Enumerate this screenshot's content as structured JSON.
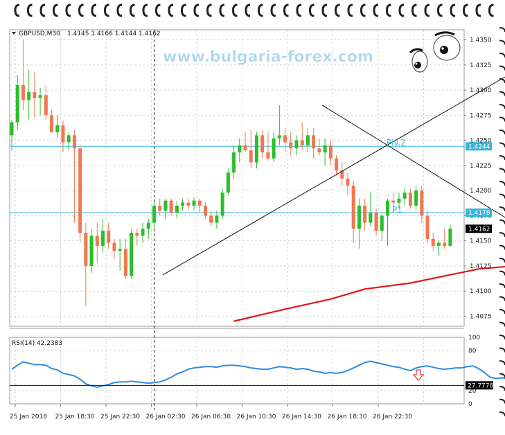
{
  "watermark": "www.bulgaria-forex.com",
  "colors": {
    "bull": "#2bbf2b",
    "bear": "#f07850",
    "pivot": "#39b6d9",
    "ma": "#e01818",
    "rsi": "#2e8be0",
    "grid": "#d6d6d6",
    "frame": "#9a9a9a",
    "arrow": "#e03030"
  },
  "chart_data": [
    {
      "type": "candlestick",
      "title": "GBPUSD,M30",
      "ohlc_header": "1.4145 1.4166 1.4144 1.4162",
      "ylim": [
        1.4065,
        1.436
      ],
      "y_ticks": [
        "1.4350",
        "1.4325",
        "1.4300",
        "1.4275",
        "1.4250",
        "1.4225",
        "1.4200",
        "1.4175",
        "1.4150",
        "1.4125",
        "1.4100",
        "1.4075"
      ],
      "x_labels": [
        "25 Jan 2018",
        "25 Jan 18:30",
        "25 Jan 22:30",
        "26 Jan 02:30",
        "26 Jan 06:30",
        "26 Jan 10:30",
        "26 Jan 14:30",
        "26 Jan 18:30",
        "26 Jan 22:30"
      ],
      "candles": [
        [
          1.4255,
          1.427,
          1.424,
          1.4268
        ],
        [
          1.4268,
          1.4315,
          1.426,
          1.4305
        ],
        [
          1.4305,
          1.435,
          1.428,
          1.429
        ],
        [
          1.429,
          1.432,
          1.427,
          1.4298
        ],
        [
          1.4298,
          1.4318,
          1.4272,
          1.4292
        ],
        [
          1.4292,
          1.4302,
          1.4275,
          1.4295
        ],
        [
          1.4295,
          1.4305,
          1.427,
          1.4275
        ],
        [
          1.4275,
          1.428,
          1.426,
          1.4258
        ],
        [
          1.4258,
          1.4275,
          1.4252,
          1.4265
        ],
        [
          1.4265,
          1.427,
          1.4238,
          1.4248
        ],
        [
          1.4248,
          1.4258,
          1.424,
          1.4255
        ],
        [
          1.4255,
          1.426,
          1.4168,
          1.4242
        ],
        [
          1.4242,
          1.4245,
          1.4148,
          1.4158
        ],
        [
          1.4158,
          1.4168,
          1.4085,
          1.4125
        ],
        [
          1.4125,
          1.4162,
          1.4118,
          1.4155
        ],
        [
          1.4155,
          1.4168,
          1.4128,
          1.4145
        ],
        [
          1.4145,
          1.4172,
          1.4138,
          1.416
        ],
        [
          1.416,
          1.4168,
          1.4142,
          1.4148
        ],
        [
          1.4148,
          1.4152,
          1.4132,
          1.414
        ],
        [
          1.414,
          1.4152,
          1.412,
          1.4142
        ],
        [
          1.4142,
          1.4152,
          1.4112,
          1.4115
        ],
        [
          1.4115,
          1.4162,
          1.4112,
          1.4158
        ],
        [
          1.4158,
          1.4162,
          1.4145,
          1.4155
        ],
        [
          1.4155,
          1.4168,
          1.4148,
          1.4162
        ],
        [
          1.4162,
          1.4172,
          1.4152,
          1.4168
        ],
        [
          1.4168,
          1.4188,
          1.4162,
          1.4185
        ],
        [
          1.4185,
          1.4192,
          1.4175,
          1.418
        ],
        [
          1.418,
          1.4192,
          1.4172,
          1.419
        ],
        [
          1.419,
          1.4192,
          1.4175,
          1.4178
        ],
        [
          1.4178,
          1.419,
          1.4172,
          1.4185
        ],
        [
          1.4185,
          1.4192,
          1.418,
          1.4188
        ],
        [
          1.4188,
          1.4192,
          1.418,
          1.4185
        ],
        [
          1.4185,
          1.4193,
          1.418,
          1.419
        ],
        [
          1.419,
          1.4192,
          1.4178,
          1.4185
        ],
        [
          1.4185,
          1.4188,
          1.4172,
          1.4175
        ],
        [
          1.4175,
          1.418,
          1.4165,
          1.4168
        ],
        [
          1.4168,
          1.418,
          1.4162,
          1.4175
        ],
        [
          1.4175,
          1.4202,
          1.4172,
          1.4198
        ],
        [
          1.4198,
          1.4222,
          1.4195,
          1.4218
        ],
        [
          1.4218,
          1.4245,
          1.4212,
          1.4238
        ],
        [
          1.4238,
          1.4252,
          1.4228,
          1.4245
        ],
        [
          1.4245,
          1.4258,
          1.4238,
          1.424
        ],
        [
          1.424,
          1.426,
          1.4222,
          1.4228
        ],
        [
          1.4228,
          1.4258,
          1.4222,
          1.4255
        ],
        [
          1.4255,
          1.426,
          1.4232,
          1.4238
        ],
        [
          1.4238,
          1.4258,
          1.423,
          1.4232
        ],
        [
          1.4232,
          1.4258,
          1.4228,
          1.4252
        ],
        [
          1.4252,
          1.4285,
          1.4245,
          1.4255
        ],
        [
          1.4255,
          1.4262,
          1.4238,
          1.4248
        ],
        [
          1.4248,
          1.4258,
          1.4235,
          1.4242
        ],
        [
          1.4242,
          1.4255,
          1.4235,
          1.425
        ],
        [
          1.425,
          1.4268,
          1.424,
          1.4245
        ],
        [
          1.4245,
          1.4262,
          1.4238,
          1.4255
        ],
        [
          1.4255,
          1.4262,
          1.4232,
          1.4242
        ],
        [
          1.4242,
          1.4252,
          1.4235,
          1.4238
        ],
        [
          1.4238,
          1.4252,
          1.4225,
          1.4245
        ],
        [
          1.4245,
          1.425,
          1.4225,
          1.4232
        ],
        [
          1.4232,
          1.4235,
          1.4215,
          1.422
        ],
        [
          1.422,
          1.4228,
          1.4205,
          1.4212
        ],
        [
          1.4212,
          1.4218,
          1.4195,
          1.4205
        ],
        [
          1.4205,
          1.421,
          1.4148,
          1.4162
        ],
        [
          1.4162,
          1.4192,
          1.4142,
          1.4185
        ],
        [
          1.4185,
          1.4192,
          1.416,
          1.4168
        ],
        [
          1.4168,
          1.4198,
          1.4165,
          1.4178
        ],
        [
          1.4178,
          1.4182,
          1.4155,
          1.416
        ],
        [
          1.416,
          1.4178,
          1.415,
          1.4175
        ],
        [
          1.4175,
          1.4192,
          1.4145,
          1.419
        ],
        [
          1.419,
          1.4198,
          1.4178,
          1.4188
        ],
        [
          1.4188,
          1.4198,
          1.4182,
          1.4192
        ],
        [
          1.4192,
          1.4202,
          1.4185,
          1.4198
        ],
        [
          1.4198,
          1.4202,
          1.4182,
          1.4185
        ],
        [
          1.4185,
          1.4205,
          1.418,
          1.42
        ],
        [
          1.42,
          1.4205,
          1.4168,
          1.4175
        ],
        [
          1.4175,
          1.418,
          1.4148,
          1.4152
        ],
        [
          1.4152,
          1.4158,
          1.414,
          1.4145
        ],
        [
          1.4145,
          1.415,
          1.4135,
          1.4148
        ],
        [
          1.4148,
          1.4162,
          1.4142,
          1.4145
        ],
        [
          1.4145,
          1.4166,
          1.4144,
          1.4162
        ]
      ],
      "moving_average": [
        [
          39,
          1.407
        ],
        [
          48,
          1.4082
        ],
        [
          56,
          1.4092
        ],
        [
          62,
          1.4102
        ],
        [
          70,
          1.4108
        ],
        [
          76,
          1.4115
        ],
        [
          82,
          1.4122
        ],
        [
          88,
          1.4125
        ]
      ],
      "horizontal_levels": [
        {
          "label": "Piv.2",
          "value": 1.4244,
          "value_text": "1.4244"
        },
        {
          "label": "P1",
          "value": 1.4178,
          "value_text": "1.4178"
        }
      ],
      "current_price": "1.4162",
      "trendlines": [
        {
          "from": [
            26.5,
            1.4116
          ],
          "to": [
            91.5,
            1.4329
          ]
        },
        {
          "from": [
            54.5,
            1.4285
          ],
          "to": [
            106,
            1.4106
          ]
        }
      ],
      "vertical_separators": [
        25,
        87.5
      ]
    },
    {
      "type": "line",
      "title": "RSI(14) 42.2383",
      "ylim": [
        0,
        100
      ],
      "y_ticks": [
        "100",
        "80",
        "20",
        "0"
      ],
      "level_value": 27.7778,
      "level_text": "27.7778",
      "values": [
        52,
        58,
        63,
        61,
        59,
        59,
        58,
        53,
        51,
        46,
        44,
        42,
        37,
        30,
        27,
        25,
        27,
        29,
        32,
        33,
        33,
        34,
        33,
        32,
        31,
        32,
        33,
        36,
        40,
        45,
        48,
        52,
        54,
        55,
        56,
        56,
        55,
        57,
        58,
        58,
        57,
        56,
        54,
        53,
        52,
        52,
        54,
        56,
        55,
        54,
        52,
        53,
        52,
        49,
        48,
        46,
        47,
        46,
        47,
        50,
        54,
        58,
        62,
        64,
        62,
        60,
        58,
        56,
        55,
        52,
        50,
        54,
        56,
        57,
        55,
        53,
        52,
        53,
        54,
        54,
        56,
        57,
        53,
        47,
        40,
        38,
        39,
        38,
        42
      ]
    }
  ]
}
